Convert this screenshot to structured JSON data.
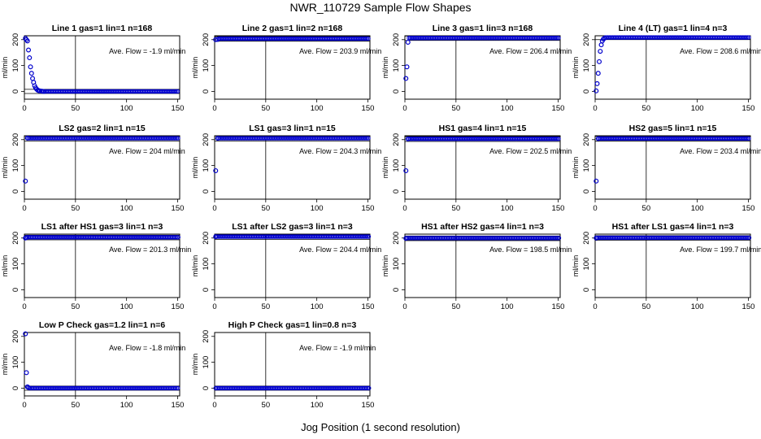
{
  "figure": {
    "title": "NWR_110729  Sample Flow Shapes",
    "xlabel": "Jog Position (1 second resolution)"
  },
  "colors": {
    "points": "#0000cc",
    "axes": "#000000",
    "background": "#ffffff"
  },
  "chart_data": [
    {
      "type": "scatter",
      "title": "Line 1 gas=1 lin=1 n=168",
      "ylabel": "ml/min",
      "annotation": "Ave. Flow =  -1.9  ml/min",
      "xlim": [
        0,
        152
      ],
      "ylim": [
        -30,
        215
      ],
      "xticks": [
        0,
        50,
        100,
        150
      ],
      "yticks": [
        0,
        100,
        200
      ],
      "hlines": [
        -8,
        8
      ],
      "vline": 50,
      "trend": "decay",
      "points": [
        [
          1,
          205
        ],
        [
          2,
          200
        ],
        [
          3,
          195
        ],
        [
          4,
          160
        ],
        [
          5,
          130
        ],
        [
          6,
          95
        ],
        [
          7,
          70
        ],
        [
          8,
          50
        ],
        [
          9,
          35
        ],
        [
          10,
          22
        ],
        [
          11,
          14
        ],
        [
          12,
          9
        ],
        [
          13,
          5
        ],
        [
          14,
          3
        ],
        [
          15,
          2
        ],
        [
          17,
          1
        ],
        [
          19,
          0
        ]
      ]
    },
    {
      "type": "scatter",
      "title": "Line 2 gas=1 lin=2 n=168",
      "ylabel": "ml/min",
      "annotation": "Ave. Flow =  203.9  ml/min",
      "xlim": [
        0,
        152
      ],
      "ylim": [
        -30,
        215
      ],
      "xticks": [
        0,
        50,
        100,
        150
      ],
      "yticks": [
        0,
        100,
        200
      ],
      "hlines": [
        194,
        212
      ],
      "vline": 50,
      "trend": "flat_high",
      "points": [
        [
          1,
          200
        ],
        [
          3,
          201
        ]
      ]
    },
    {
      "type": "scatter",
      "title": "Line 3 gas=1 lin=3 n=168",
      "ylabel": "ml/min",
      "annotation": "Ave. Flow =  206.4  ml/min",
      "xlim": [
        0,
        152
      ],
      "ylim": [
        -30,
        215
      ],
      "xticks": [
        0,
        50,
        100,
        150
      ],
      "yticks": [
        0,
        100,
        200
      ],
      "hlines": [
        197,
        214
      ],
      "vline": 50,
      "trend": "flat_high",
      "points": [
        [
          1,
          50
        ],
        [
          2,
          95
        ],
        [
          3,
          190
        ]
      ]
    },
    {
      "type": "scatter",
      "title": "Line 4 (LT) gas=1 lin=4 n=3",
      "ylabel": "ml/min",
      "annotation": "Ave. Flow =  208.6  ml/min",
      "xlim": [
        0,
        152
      ],
      "ylim": [
        -30,
        215
      ],
      "xticks": [
        0,
        50,
        100,
        150
      ],
      "yticks": [
        0,
        100,
        200
      ],
      "hlines": [
        200,
        215
      ],
      "vline": 50,
      "trend": "flat_high",
      "points": [
        [
          1,
          2
        ],
        [
          2,
          30
        ],
        [
          3,
          70
        ],
        [
          4,
          115
        ],
        [
          5,
          155
        ],
        [
          6,
          180
        ],
        [
          7,
          195
        ],
        [
          8,
          202
        ],
        [
          9,
          205
        ]
      ]
    },
    {
      "type": "scatter",
      "title": "LS2 gas=2 lin=1 n=15",
      "ylabel": "ml/min",
      "annotation": "Ave. Flow =  204  ml/min",
      "xlim": [
        0,
        152
      ],
      "ylim": [
        -30,
        215
      ],
      "xticks": [
        0,
        50,
        100,
        150
      ],
      "yticks": [
        0,
        100,
        200
      ],
      "hlines": [
        195,
        214
      ],
      "vline": 50,
      "trend": "flat_high",
      "points": [
        [
          1,
          40
        ],
        [
          3,
          206
        ]
      ]
    },
    {
      "type": "scatter",
      "title": "LS1 gas=3 lin=1 n=15",
      "ylabel": "ml/min",
      "annotation": "Ave. Flow =  204.3  ml/min",
      "xlim": [
        0,
        152
      ],
      "ylim": [
        -30,
        215
      ],
      "xticks": [
        0,
        50,
        100,
        150
      ],
      "yticks": [
        0,
        100,
        200
      ],
      "hlines": [
        195,
        214
      ],
      "vline": 50,
      "trend": "flat_high",
      "points": [
        [
          1,
          80
        ],
        [
          3,
          205
        ]
      ]
    },
    {
      "type": "scatter",
      "title": "HS1 gas=4 lin=1 n=15",
      "ylabel": "ml/min",
      "annotation": "Ave. Flow =  202.5  ml/min",
      "xlim": [
        0,
        152
      ],
      "ylim": [
        -30,
        215
      ],
      "xticks": [
        0,
        50,
        100,
        150
      ],
      "yticks": [
        0,
        100,
        200
      ],
      "hlines": [
        193,
        212
      ],
      "vline": 50,
      "trend": "flat_high",
      "points": [
        [
          1,
          80
        ],
        [
          3,
          203
        ]
      ]
    },
    {
      "type": "scatter",
      "title": "HS2 gas=5 lin=1 n=15",
      "ylabel": "ml/min",
      "annotation": "Ave. Flow =  203.4  ml/min",
      "xlim": [
        0,
        152
      ],
      "ylim": [
        -30,
        215
      ],
      "xticks": [
        0,
        50,
        100,
        150
      ],
      "yticks": [
        0,
        100,
        200
      ],
      "hlines": [
        194,
        213
      ],
      "vline": 50,
      "trend": "flat_high",
      "points": [
        [
          1,
          40
        ],
        [
          3,
          204
        ]
      ]
    },
    {
      "type": "scatter",
      "title": "LS1 after HS1 gas=3 lin=1 n=3",
      "ylabel": "ml/min",
      "annotation": "Ave. Flow =  201.3  ml/min",
      "xlim": [
        0,
        152
      ],
      "ylim": [
        -30,
        215
      ],
      "xticks": [
        0,
        50,
        100,
        150
      ],
      "yticks": [
        0,
        100,
        200
      ],
      "hlines": [
        193,
        211
      ],
      "vline": 50,
      "trend": "flat_high",
      "points": [
        [
          1,
          200
        ],
        [
          2,
          202
        ]
      ]
    },
    {
      "type": "scatter",
      "title": "LS1 after LS2 gas=3 lin=1 n=3",
      "ylabel": "ml/min",
      "annotation": "Ave. Flow =  204.4  ml/min",
      "xlim": [
        0,
        152
      ],
      "ylim": [
        -30,
        215
      ],
      "xticks": [
        0,
        50,
        100,
        150
      ],
      "yticks": [
        0,
        100,
        200
      ],
      "hlines": [
        195,
        214
      ],
      "vline": 50,
      "trend": "flat_high",
      "points": [
        [
          1,
          205
        ]
      ]
    },
    {
      "type": "scatter",
      "title": "HS1 after HS2 gas=4 lin=1 n=3",
      "ylabel": "ml/min",
      "annotation": "Ave. Flow =  198.5  ml/min",
      "xlim": [
        0,
        152
      ],
      "ylim": [
        -30,
        215
      ],
      "xticks": [
        0,
        50,
        100,
        150
      ],
      "yticks": [
        0,
        100,
        200
      ],
      "hlines": [
        190,
        208
      ],
      "vline": 50,
      "trend": "flat_high",
      "points": [
        [
          1,
          199
        ]
      ]
    },
    {
      "type": "scatter",
      "title": "HS1 after LS1 gas=4 lin=1 n=3",
      "ylabel": "ml/min",
      "annotation": "Ave. Flow =  199.7  ml/min",
      "xlim": [
        0,
        152
      ],
      "ylim": [
        -30,
        215
      ],
      "xticks": [
        0,
        50,
        100,
        150
      ],
      "yticks": [
        0,
        100,
        200
      ],
      "hlines": [
        191,
        209
      ],
      "vline": 50,
      "trend": "flat_high",
      "points": [
        [
          1,
          200
        ]
      ]
    },
    {
      "type": "scatter",
      "title": "Low P Check gas=1.2 lin=1 n=6",
      "ylabel": "ml/min",
      "annotation": "Ave. Flow =  -1.8  ml/min",
      "xlim": [
        0,
        152
      ],
      "ylim": [
        -30,
        215
      ],
      "xticks": [
        0,
        50,
        100,
        150
      ],
      "yticks": [
        0,
        100,
        200
      ],
      "hlines": [
        -8,
        8
      ],
      "vline": 50,
      "trend": "flat_zero",
      "points": [
        [
          1,
          210
        ],
        [
          2,
          60
        ],
        [
          3,
          5
        ],
        [
          4,
          2
        ]
      ]
    },
    {
      "type": "scatter",
      "title": "High P Check gas=1 lin=0.8 n=3",
      "ylabel": "ml/min",
      "annotation": "Ave. Flow =  -1.9  ml/min",
      "xlim": [
        0,
        152
      ],
      "ylim": [
        -30,
        215
      ],
      "xticks": [
        0,
        50,
        100,
        150
      ],
      "yticks": [
        0,
        100,
        200
      ],
      "hlines": [
        -8,
        8
      ],
      "vline": 50,
      "trend": "flat_zero",
      "points": []
    }
  ]
}
